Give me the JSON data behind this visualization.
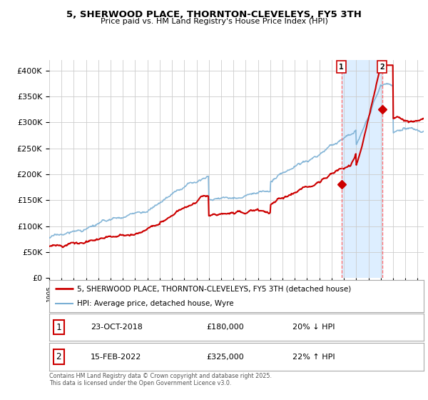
{
  "title": "5, SHERWOOD PLACE, THORNTON-CLEVELEYS, FY5 3TH",
  "subtitle": "Price paid vs. HM Land Registry's House Price Index (HPI)",
  "legend_line1": "5, SHERWOOD PLACE, THORNTON-CLEVELEYS, FY5 3TH (detached house)",
  "legend_line2": "HPI: Average price, detached house, Wyre",
  "footer": "Contains HM Land Registry data © Crown copyright and database right 2025.\nThis data is licensed under the Open Government Licence v3.0.",
  "sale1_date": "23-OCT-2018",
  "sale1_price": "£180,000",
  "sale1_hpi": "20% ↓ HPI",
  "sale2_date": "15-FEB-2022",
  "sale2_price": "£325,000",
  "sale2_hpi": "22% ↑ HPI",
  "red_color": "#cc0000",
  "blue_color": "#7aafd4",
  "bg_color": "#ffffff",
  "grid_color": "#cccccc",
  "highlight_bg": "#ddeeff",
  "dashed_color": "#ff6666",
  "xmin": 1995.0,
  "xmax": 2025.5,
  "ymin": 0,
  "ymax": 420000,
  "sale1_x": 2018.81,
  "sale1_y": 180000,
  "sale2_x": 2022.12,
  "sale2_y": 325000,
  "yticks": [
    0,
    50000,
    100000,
    150000,
    200000,
    250000,
    300000,
    350000,
    400000
  ],
  "ytick_labels": [
    "£0",
    "£50K",
    "£100K",
    "£150K",
    "£200K",
    "£250K",
    "£300K",
    "£350K",
    "£400K"
  ],
  "xticks": [
    1995,
    1996,
    1997,
    1998,
    1999,
    2000,
    2001,
    2002,
    2003,
    2004,
    2005,
    2006,
    2007,
    2008,
    2009,
    2010,
    2011,
    2012,
    2013,
    2014,
    2015,
    2016,
    2017,
    2018,
    2019,
    2020,
    2021,
    2022,
    2023,
    2024,
    2025
  ]
}
